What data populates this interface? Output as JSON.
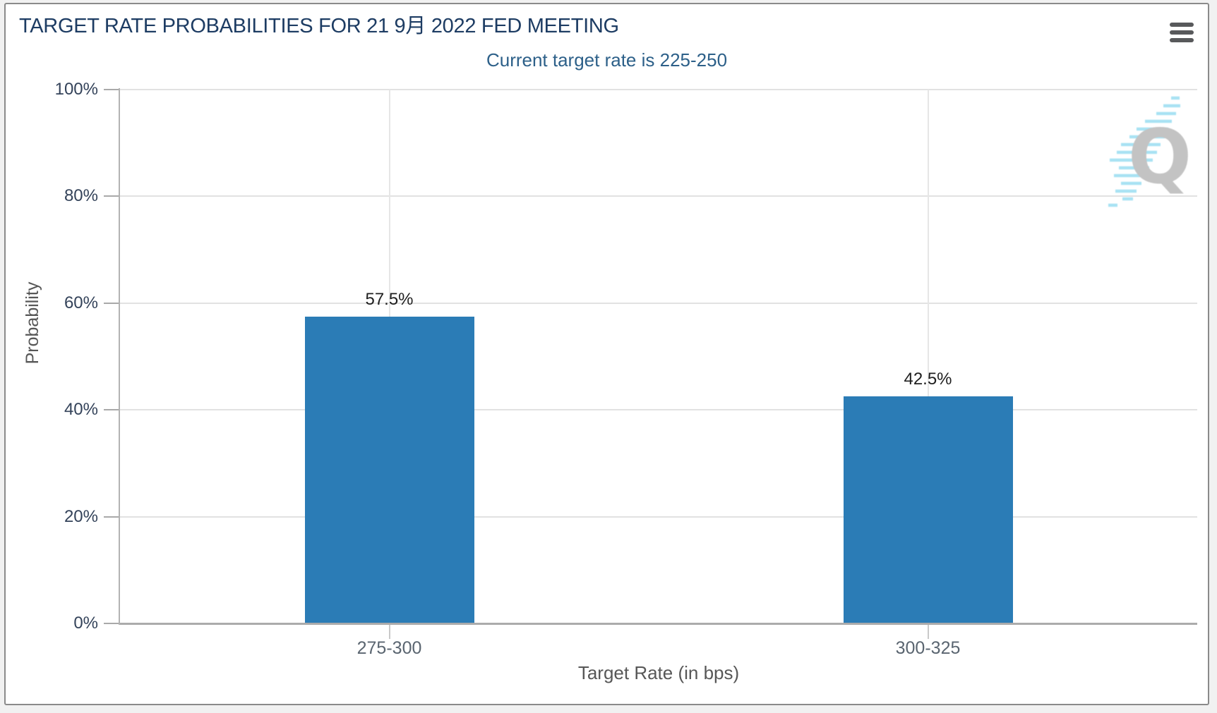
{
  "page": {
    "background_color": "#f1f1f1",
    "panel_border_color": "#8a8a8a"
  },
  "header": {
    "title": "TARGET RATE PROBABILITIES FOR 21 9月 2022 FED MEETING",
    "subtitle": "Current target rate is 225-250",
    "title_color": "#1d3c63",
    "subtitle_color": "#2d6089",
    "menu_icon": "hamburger-icon"
  },
  "watermark": {
    "letter": "Q",
    "letter_color": "#bdbdbd",
    "stripe_color": "#9fdff2"
  },
  "chart_data": {
    "type": "bar",
    "title": "TARGET RATE PROBABILITIES FOR 21 9月 2022 FED MEETING",
    "subtitle": "Current target rate is 225-250",
    "categories": [
      "275-300",
      "300-325"
    ],
    "values": [
      57.5,
      42.5
    ],
    "value_labels": [
      "57.5%",
      "42.5%"
    ],
    "xlabel": "Target Rate (in bps)",
    "ylabel": "Probability",
    "ylim": [
      0,
      100
    ],
    "y_ticks": [
      0,
      20,
      40,
      60,
      80,
      100
    ],
    "y_tick_labels": [
      "0%",
      "20%",
      "40%",
      "60%",
      "80%",
      "100%"
    ],
    "grid": true,
    "legend_position": "none",
    "bar_color": "#2b7cb6",
    "gridline_color": "#e2e2e2",
    "axis_color": "#ababab"
  }
}
